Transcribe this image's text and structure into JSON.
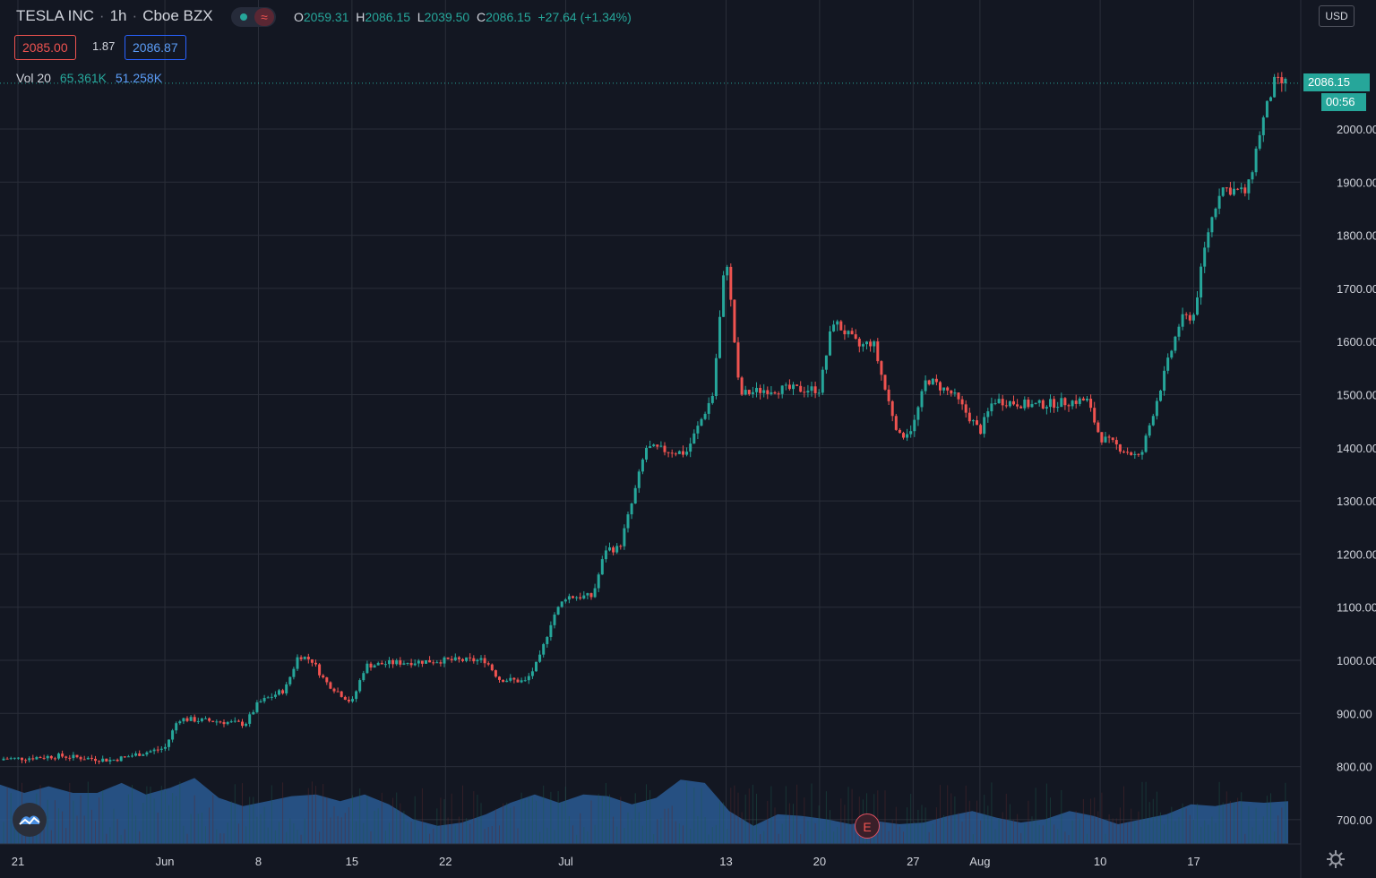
{
  "header": {
    "symbol": "TESLA INC",
    "interval": "1h",
    "exchange": "Cboe BZX",
    "open_label": "O",
    "open": "2059.31",
    "high_label": "H",
    "high": "2086.15",
    "low_label": "L",
    "low": "2039.50",
    "close_label": "C",
    "close": "2086.15",
    "change": "+27.64 (+1.34%)",
    "bid": "2085.00",
    "spread": "1.87",
    "ask": "2086.87"
  },
  "volume_legend": {
    "label": "Vol 20",
    "value1": "65.361K",
    "value2": "51.258K"
  },
  "price_axis": {
    "currency": "USD",
    "last_price": "2086.15",
    "countdown": "00:56"
  },
  "earnings_marker": "E",
  "colors": {
    "background": "#131722",
    "up": "#26a69a",
    "down": "#ef5350",
    "volume_area": "#2a5a93",
    "grid": "#2a2e39"
  },
  "icons": [
    "tradingview-logo-icon",
    "earnings-icon",
    "settings-gear-icon",
    "live-dot-icon",
    "wave-icon"
  ],
  "chart_data": {
    "type": "candlestick",
    "interval": "1h",
    "y_ticks": [
      700,
      800,
      900,
      1000,
      1100,
      1200,
      1300,
      1400,
      1500,
      1600,
      1700,
      1800,
      1900,
      2000
    ],
    "x_ticks": [
      "21",
      "Jun",
      "8",
      "15",
      "22",
      "Jul",
      "13",
      "20",
      "27",
      "Aug",
      "10",
      "17"
    ],
    "price_path": [
      [
        "May 21",
        815
      ],
      [
        "May 24",
        820
      ],
      [
        "May 28",
        812
      ],
      [
        "Jun 1",
        835
      ],
      [
        "Jun 2",
        890
      ],
      [
        "Jun 5",
        885
      ],
      [
        "Jun 7",
        880
      ],
      [
        "Jun 8",
        920
      ],
      [
        "Jun 10",
        945
      ],
      [
        "Jun 11",
        1010
      ],
      [
        "Jun 12",
        1000
      ],
      [
        "Jun 13",
        960
      ],
      [
        "Jun 15",
        920
      ],
      [
        "Jun 16",
        990
      ],
      [
        "Jun 18",
        995
      ],
      [
        "Jun 22",
        1000
      ],
      [
        "Jun 25",
        1000
      ],
      [
        "Jun 26",
        965
      ],
      [
        "Jun 28",
        960
      ],
      [
        "Jun 29",
        1000
      ],
      [
        "Jun 30",
        1080
      ],
      [
        "Jul 1",
        1120
      ],
      [
        "Jul 3",
        1120
      ],
      [
        "Jul 4",
        1210
      ],
      [
        "Jul 5",
        1210
      ],
      [
        "Jul 6",
        1300
      ],
      [
        "Jul 7",
        1400
      ],
      [
        "Jul 10",
        1390
      ],
      [
        "Jul 12",
        1500
      ],
      [
        "Jul 13",
        1770
      ],
      [
        "Jul 14",
        1500
      ],
      [
        "Jul 16",
        1510
      ],
      [
        "Jul 18",
        1510
      ],
      [
        "Jul 20",
        1510
      ],
      [
        "Jul 21",
        1640
      ],
      [
        "Jul 23",
        1590
      ],
      [
        "Jul 24",
        1600
      ],
      [
        "Jul 25",
        1500
      ],
      [
        "Jul 26",
        1420
      ],
      [
        "Jul 27",
        1440
      ],
      [
        "Jul 28",
        1530
      ],
      [
        "Jul 30",
        1500
      ],
      [
        "Aug 1",
        1430
      ],
      [
        "Aug 2",
        1490
      ],
      [
        "Aug 5",
        1480
      ],
      [
        "Aug 9",
        1490
      ],
      [
        "Aug 10",
        1420
      ],
      [
        "Aug 13",
        1380
      ],
      [
        "Aug 14",
        1470
      ],
      [
        "Aug 16",
        1640
      ],
      [
        "Aug 17",
        1650
      ],
      [
        "Aug 18",
        1800
      ],
      [
        "Aug 19",
        1890
      ],
      [
        "Aug 21",
        1880
      ],
      [
        "Aug 22",
        2000
      ],
      [
        "Aug 23",
        2086.15
      ]
    ],
    "volume": {
      "label": "Vol 20",
      "ma_profile": [
        0.72,
        0.62,
        0.7,
        0.62,
        0.62,
        0.74,
        0.6,
        0.68,
        0.8,
        0.56,
        0.46,
        0.52,
        0.58,
        0.6,
        0.52,
        0.6,
        0.48,
        0.3,
        0.22,
        0.26,
        0.36,
        0.5,
        0.6,
        0.5,
        0.6,
        0.58,
        0.48,
        0.56,
        0.78,
        0.74,
        0.4,
        0.22,
        0.36,
        0.34,
        0.3,
        0.24,
        0.28,
        0.24,
        0.26,
        0.34,
        0.4,
        0.32,
        0.26,
        0.3,
        0.4,
        0.34,
        0.24,
        0.3,
        0.36,
        0.48,
        0.46,
        0.52,
        0.5,
        0.52
      ]
    },
    "last_price": 2086.15,
    "currency": "USD"
  }
}
